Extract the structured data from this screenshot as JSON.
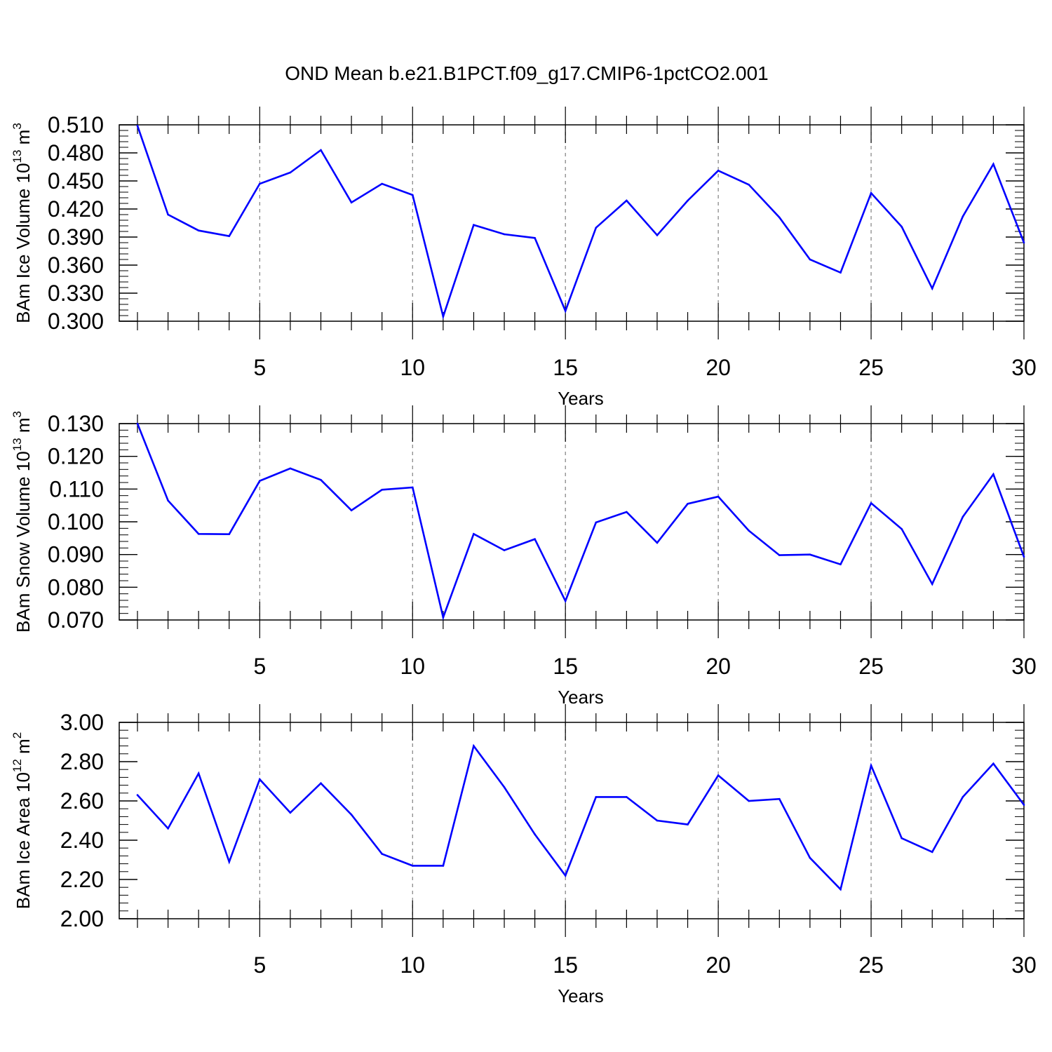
{
  "title": "OND Mean b.e21.B1PCT.f09_g17.CMIP6-1pctCO2.001",
  "colors": {
    "line": "#0000ff",
    "axis": "#000000",
    "grid": "#808080"
  },
  "chart_data": [
    {
      "type": "line",
      "ylabel": "BAm Ice Volume",
      "ylabel_unit": {
        "base": "10",
        "exp": "13",
        "unit": "m",
        "unit_exp": "3"
      },
      "xlabel": "Years",
      "xlim": [
        1,
        30
      ],
      "ylim": [
        0.3,
        0.51
      ],
      "x_ticks": [
        5,
        10,
        15,
        20,
        25,
        30
      ],
      "x_tick_labels": [
        "5",
        "10",
        "15",
        "20",
        "25",
        "30"
      ],
      "y_ticks": [
        0.3,
        0.33,
        0.36,
        0.39,
        0.42,
        0.45,
        0.48,
        0.51
      ],
      "y_tick_labels": [
        "0.300",
        "0.330",
        "0.360",
        "0.390",
        "0.420",
        "0.450",
        "0.480",
        "0.510"
      ],
      "y_minor_step": 0.006,
      "grid": "dashed vertical at major x ticks",
      "x": [
        1,
        2,
        3,
        4,
        5,
        6,
        7,
        8,
        9,
        10,
        11,
        12,
        13,
        14,
        15,
        16,
        17,
        18,
        19,
        20,
        21,
        22,
        23,
        24,
        25,
        26,
        27,
        28,
        29,
        30
      ],
      "values": [
        0.509,
        0.414,
        0.397,
        0.391,
        0.447,
        0.459,
        0.483,
        0.427,
        0.447,
        0.435,
        0.305,
        0.403,
        0.393,
        0.389,
        0.311,
        0.4,
        0.429,
        0.392,
        0.429,
        0.461,
        0.446,
        0.411,
        0.366,
        0.352,
        0.437,
        0.401,
        0.335,
        0.412,
        0.468,
        0.384
      ]
    },
    {
      "type": "line",
      "ylabel": "BAm Snow Volume",
      "ylabel_unit": {
        "base": "10",
        "exp": "13",
        "unit": "m",
        "unit_exp": "3"
      },
      "xlabel": "Years",
      "xlim": [
        1,
        30
      ],
      "ylim": [
        0.07,
        0.13
      ],
      "x_ticks": [
        5,
        10,
        15,
        20,
        25,
        30
      ],
      "x_tick_labels": [
        "5",
        "10",
        "15",
        "20",
        "25",
        "30"
      ],
      "y_ticks": [
        0.07,
        0.08,
        0.09,
        0.1,
        0.11,
        0.12,
        0.13
      ],
      "y_tick_labels": [
        "0.070",
        "0.080",
        "0.090",
        "0.100",
        "0.110",
        "0.120",
        "0.130"
      ],
      "y_minor_step": 0.002,
      "grid": "dashed vertical at major x ticks",
      "x": [
        1,
        2,
        3,
        4,
        5,
        6,
        7,
        8,
        9,
        10,
        11,
        12,
        13,
        14,
        15,
        16,
        17,
        18,
        19,
        20,
        21,
        22,
        23,
        24,
        25,
        26,
        27,
        28,
        29,
        30
      ],
      "values": [
        0.13,
        0.1065,
        0.0963,
        0.0962,
        0.1125,
        0.1163,
        0.1128,
        0.1035,
        0.1098,
        0.1105,
        0.0708,
        0.0963,
        0.0913,
        0.0947,
        0.0758,
        0.0998,
        0.103,
        0.0936,
        0.1055,
        0.1077,
        0.0973,
        0.0898,
        0.09,
        0.087,
        0.1057,
        0.0978,
        0.081,
        0.1015,
        0.1145,
        0.0893
      ]
    },
    {
      "type": "line",
      "ylabel": "BAm Ice Area",
      "ylabel_unit": {
        "base": "10",
        "exp": "12",
        "unit": "m",
        "unit_exp": "2"
      },
      "xlabel": "Years",
      "xlim": [
        1,
        30
      ],
      "ylim": [
        2.0,
        3.0
      ],
      "x_ticks": [
        5,
        10,
        15,
        20,
        25,
        30
      ],
      "x_tick_labels": [
        "5",
        "10",
        "15",
        "20",
        "25",
        "30"
      ],
      "y_ticks": [
        2.0,
        2.2,
        2.4,
        2.6,
        2.8,
        3.0
      ],
      "y_tick_labels": [
        "2.00",
        "2.20",
        "2.40",
        "2.60",
        "2.80",
        "3.00"
      ],
      "y_minor_step": 0.04,
      "grid": "dashed vertical at major x ticks",
      "x": [
        1,
        2,
        3,
        4,
        5,
        6,
        7,
        8,
        9,
        10,
        11,
        12,
        13,
        14,
        15,
        16,
        17,
        18,
        19,
        20,
        21,
        22,
        23,
        24,
        25,
        26,
        27,
        28,
        29,
        30
      ],
      "values": [
        2.63,
        2.46,
        2.74,
        2.29,
        2.71,
        2.54,
        2.69,
        2.53,
        2.33,
        2.27,
        2.27,
        2.88,
        2.67,
        2.43,
        2.22,
        2.62,
        2.62,
        2.5,
        2.48,
        2.73,
        2.6,
        2.61,
        2.31,
        2.15,
        2.78,
        2.41,
        2.34,
        2.62,
        2.79,
        2.58
      ]
    }
  ]
}
